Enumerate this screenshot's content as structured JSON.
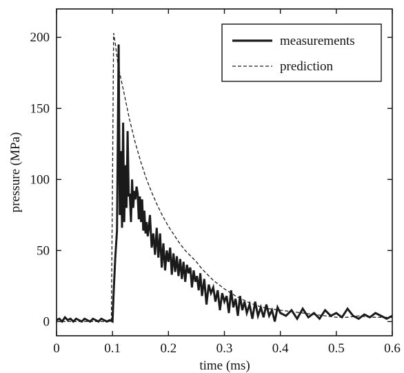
{
  "chart_data": {
    "type": "line",
    "title": "",
    "xlabel": "time (ms)",
    "ylabel": "pressure (MPa)",
    "xlim": [
      0,
      0.6
    ],
    "ylim": [
      -10,
      220
    ],
    "x_ticks": [
      0,
      0.1,
      0.2,
      0.3,
      0.4,
      0.5,
      0.6
    ],
    "x_tick_labels": [
      "0",
      "0.1",
      "0.2",
      "0.3",
      "0.4",
      "0.5",
      "0.6"
    ],
    "y_ticks": [
      0,
      50,
      100,
      150,
      200
    ],
    "y_tick_labels": [
      "0",
      "50",
      "100",
      "150",
      "200"
    ],
    "grid": false,
    "legend": {
      "position": "top-right",
      "entries": [
        "measurements",
        "prediction"
      ]
    },
    "series": [
      {
        "name": "measurements",
        "style": "solid-thick",
        "color": "#1a1a1a",
        "x": [
          0,
          0.005,
          0.01,
          0.015,
          0.02,
          0.025,
          0.03,
          0.035,
          0.04,
          0.045,
          0.05,
          0.055,
          0.06,
          0.065,
          0.07,
          0.075,
          0.08,
          0.085,
          0.09,
          0.095,
          0.1,
          0.102,
          0.105,
          0.108,
          0.111,
          0.113,
          0.115,
          0.117,
          0.119,
          0.121,
          0.123,
          0.125,
          0.127,
          0.129,
          0.131,
          0.133,
          0.135,
          0.137,
          0.139,
          0.141,
          0.143,
          0.145,
          0.147,
          0.149,
          0.151,
          0.153,
          0.155,
          0.157,
          0.159,
          0.161,
          0.163,
          0.165,
          0.167,
          0.17,
          0.173,
          0.176,
          0.179,
          0.182,
          0.185,
          0.188,
          0.191,
          0.194,
          0.197,
          0.2,
          0.203,
          0.206,
          0.209,
          0.212,
          0.215,
          0.218,
          0.221,
          0.224,
          0.227,
          0.23,
          0.233,
          0.236,
          0.239,
          0.242,
          0.245,
          0.248,
          0.251,
          0.254,
          0.257,
          0.26,
          0.264,
          0.268,
          0.272,
          0.276,
          0.28,
          0.284,
          0.288,
          0.292,
          0.296,
          0.3,
          0.304,
          0.308,
          0.312,
          0.316,
          0.32,
          0.324,
          0.328,
          0.332,
          0.336,
          0.34,
          0.345,
          0.35,
          0.355,
          0.36,
          0.365,
          0.37,
          0.375,
          0.38,
          0.385,
          0.39,
          0.395,
          0.4,
          0.41,
          0.42,
          0.43,
          0.44,
          0.45,
          0.46,
          0.47,
          0.48,
          0.49,
          0.5,
          0.51,
          0.52,
          0.53,
          0.54,
          0.55,
          0.56,
          0.57,
          0.58,
          0.59,
          0.6
        ],
        "y": [
          1,
          2,
          0,
          3,
          1,
          2,
          0,
          2,
          1,
          0,
          2,
          1,
          0,
          2,
          1,
          0,
          2,
          1,
          0,
          1,
          0,
          20,
          45,
          64,
          195,
          75,
          120,
          66,
          140,
          70,
          110,
          80,
          134,
          88,
          90,
          70,
          100,
          80,
          92,
          86,
          95,
          90,
          72,
          88,
          70,
          86,
          64,
          78,
          62,
          70,
          60,
          66,
          75,
          52,
          62,
          47,
          66,
          45,
          62,
          38,
          55,
          36,
          50,
          42,
          52,
          33,
          48,
          35,
          46,
          32,
          44,
          30,
          42,
          28,
          40,
          34,
          38,
          24,
          36,
          28,
          32,
          22,
          34,
          18,
          30,
          12,
          26,
          20,
          24,
          14,
          22,
          8,
          20,
          14,
          18,
          6,
          22,
          10,
          16,
          4,
          18,
          8,
          14,
          6,
          12,
          2,
          14,
          4,
          10,
          3,
          12,
          4,
          8,
          0,
          10,
          6,
          4,
          8,
          2,
          9,
          3,
          6,
          2,
          8,
          4,
          6,
          3,
          9,
          4,
          2,
          5,
          3,
          6,
          4,
          2,
          4
        ]
      },
      {
        "name": "prediction",
        "style": "dashed",
        "color": "#1a1a1a",
        "x": [
          0,
          0.02,
          0.04,
          0.06,
          0.08,
          0.098,
          0.1,
          0.102,
          0.105,
          0.11,
          0.12,
          0.13,
          0.14,
          0.15,
          0.16,
          0.17,
          0.18,
          0.19,
          0.2,
          0.21,
          0.22,
          0.23,
          0.24,
          0.25,
          0.26,
          0.27,
          0.28,
          0.29,
          0.3,
          0.32,
          0.34,
          0.36,
          0.38,
          0.4,
          0.42,
          0.44,
          0.46,
          0.48,
          0.5,
          0.52,
          0.54,
          0.56,
          0.58,
          0.6
        ],
        "y": [
          0,
          0,
          0,
          0,
          0,
          0,
          100,
          203,
          196,
          180,
          162,
          143,
          127,
          113,
          101,
          91,
          82,
          74,
          67,
          61,
          55,
          50,
          46,
          42,
          37,
          33,
          29,
          26,
          23,
          18,
          14,
          11,
          9,
          8,
          7,
          6,
          5,
          4,
          3,
          3,
          4,
          3,
          3,
          3
        ]
      }
    ]
  }
}
